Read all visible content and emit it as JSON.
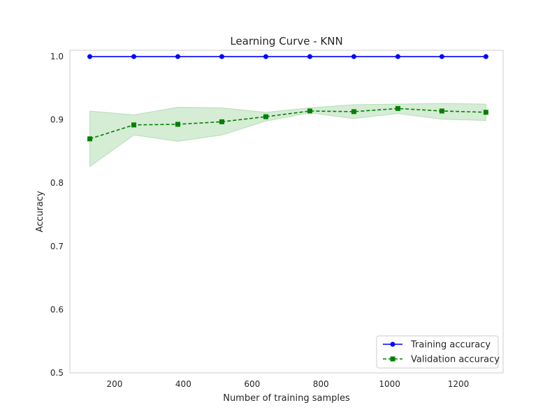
{
  "chart_data": {
    "type": "line",
    "title": "Learning Curve - KNN",
    "xlabel": "Number of training samples",
    "ylabel": "Accuracy",
    "xlim": [
      70,
      1330
    ],
    "ylim": [
      0.5,
      1.01
    ],
    "xticks": [
      200,
      400,
      600,
      800,
      1000,
      1200
    ],
    "yticks": [
      0.5,
      0.6,
      0.7,
      0.8,
      0.9,
      1.0
    ],
    "ytick_labels": [
      "0.5",
      "0.6",
      "0.7",
      "0.8",
      "0.9",
      "1.0"
    ],
    "grid": false,
    "legend_position": "lower-right",
    "x": [
      128,
      256,
      384,
      512,
      640,
      768,
      896,
      1024,
      1152,
      1280
    ],
    "series": [
      {
        "name": "Training accuracy",
        "color": "#0000ff",
        "marker": "circle",
        "linestyle": "solid",
        "values": [
          1.0,
          1.0,
          1.0,
          1.0,
          1.0,
          1.0,
          1.0,
          1.0,
          1.0,
          1.0
        ]
      },
      {
        "name": "Validation accuracy",
        "color": "#008000",
        "marker": "square",
        "linestyle": "dashed",
        "values": [
          0.87,
          0.892,
          0.893,
          0.897,
          0.905,
          0.914,
          0.913,
          0.918,
          0.914,
          0.912
        ],
        "band_upper": [
          0.914,
          0.908,
          0.92,
          0.919,
          0.912,
          0.919,
          0.924,
          0.925,
          0.926,
          0.925
        ],
        "band_lower": [
          0.826,
          0.876,
          0.866,
          0.876,
          0.898,
          0.911,
          0.902,
          0.91,
          0.901,
          0.899
        ],
        "band_color": "#2ca02c"
      }
    ]
  }
}
